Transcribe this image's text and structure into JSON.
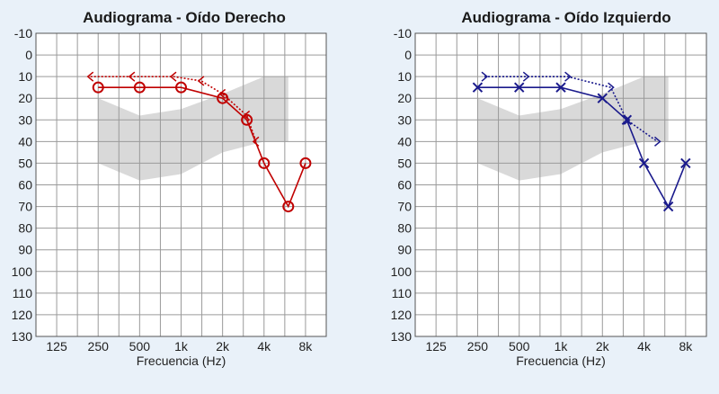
{
  "chart_data": [
    {
      "type": "line",
      "title": "Audiograma - Oído Derecho",
      "xlabel": "Frecuencia (Hz)",
      "ylabel": "",
      "x_categories": [
        "125",
        "250",
        "500",
        "1k",
        "2k",
        "4k",
        "8k"
      ],
      "x_values": [
        125,
        250,
        500,
        1000,
        2000,
        4000,
        8000
      ],
      "y_ticks": [
        "-10",
        "0",
        "10",
        "20",
        "30",
        "40",
        "50",
        "60",
        "70",
        "80",
        "90",
        "100",
        "110",
        "120",
        "130"
      ],
      "ylim": [
        -10,
        130
      ],
      "y_inverted": true,
      "x_scale": "log",
      "grid": true,
      "color": "#c00000",
      "speech_banana": {
        "color": "#d9d9d9",
        "upper": [
          [
            250,
            20
          ],
          [
            500,
            28
          ],
          [
            1000,
            25
          ],
          [
            2000,
            18
          ],
          [
            4000,
            10
          ],
          [
            6000,
            10
          ]
        ],
        "lower": [
          [
            250,
            50
          ],
          [
            500,
            58
          ],
          [
            1000,
            55
          ],
          [
            2000,
            45
          ],
          [
            4000,
            40
          ],
          [
            6000,
            40
          ]
        ]
      },
      "series": [
        {
          "name": "",
          "marker": "circle",
          "line_style": "solid",
          "points": [
            [
              250,
              15
            ],
            [
              500,
              15
            ],
            [
              1000,
              15
            ],
            [
              2000,
              20
            ],
            [
              3000,
              30
            ],
            [
              4000,
              50
            ],
            [
              6000,
              70
            ],
            [
              8000,
              50
            ]
          ]
        },
        {
          "name": "",
          "marker": "bracket-left",
          "line_style": "dotted",
          "points": [
            [
              220,
              10
            ],
            [
              440,
              10
            ],
            [
              880,
              10
            ],
            [
              1400,
              12
            ],
            [
              2000,
              18
            ],
            [
              3000,
              28
            ],
            [
              3500,
              40
            ]
          ]
        }
      ]
    },
    {
      "type": "line",
      "title": "Audiograma - Oído Izquierdo",
      "xlabel": "Frecuencia (Hz)",
      "ylabel": "",
      "x_categories": [
        "125",
        "250",
        "500",
        "1k",
        "2k",
        "4k",
        "8k"
      ],
      "x_values": [
        125,
        250,
        500,
        1000,
        2000,
        4000,
        8000
      ],
      "y_ticks": [
        "-10",
        "0",
        "10",
        "20",
        "30",
        "40",
        "50",
        "60",
        "70",
        "80",
        "90",
        "100",
        "110",
        "120",
        "130"
      ],
      "ylim": [
        -10,
        130
      ],
      "y_inverted": true,
      "x_scale": "log",
      "grid": true,
      "color": "#1a1a8c",
      "speech_banana": {
        "color": "#d9d9d9",
        "upper": [
          [
            250,
            20
          ],
          [
            500,
            28
          ],
          [
            1000,
            25
          ],
          [
            2000,
            18
          ],
          [
            4000,
            10
          ],
          [
            6000,
            10
          ]
        ],
        "lower": [
          [
            250,
            50
          ],
          [
            500,
            58
          ],
          [
            1000,
            55
          ],
          [
            2000,
            45
          ],
          [
            4000,
            40
          ],
          [
            6000,
            40
          ]
        ]
      },
      "series": [
        {
          "name": "",
          "marker": "cross",
          "line_style": "solid",
          "points": [
            [
              250,
              15
            ],
            [
              500,
              15
            ],
            [
              1000,
              15
            ],
            [
              2000,
              20
            ],
            [
              3000,
              30
            ],
            [
              4000,
              50
            ],
            [
              6000,
              70
            ],
            [
              8000,
              50
            ]
          ]
        },
        {
          "name": "",
          "marker": "bracket-right",
          "line_style": "dotted",
          "points": [
            [
              280,
              10
            ],
            [
              560,
              10
            ],
            [
              1120,
              10
            ],
            [
              2300,
              15
            ],
            [
              3000,
              30
            ],
            [
              5000,
              40
            ]
          ]
        }
      ]
    }
  ]
}
